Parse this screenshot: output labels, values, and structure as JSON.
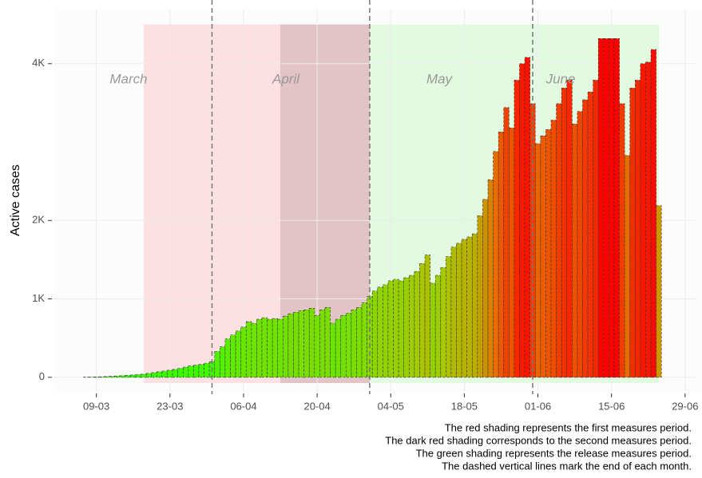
{
  "chart_data": {
    "type": "bar",
    "ylabel": "Active cases",
    "x": [
      "07-03",
      "08-03",
      "09-03",
      "10-03",
      "11-03",
      "12-03",
      "13-03",
      "14-03",
      "15-03",
      "16-03",
      "17-03",
      "18-03",
      "19-03",
      "20-03",
      "21-03",
      "22-03",
      "23-03",
      "24-03",
      "25-03",
      "26-03",
      "27-03",
      "28-03",
      "29-03",
      "30-03",
      "31-03",
      "01-04",
      "02-04",
      "03-04",
      "04-04",
      "05-04",
      "06-04",
      "07-04",
      "08-04",
      "09-04",
      "10-04",
      "11-04",
      "12-04",
      "13-04",
      "14-04",
      "15-04",
      "16-04",
      "17-04",
      "18-04",
      "19-04",
      "20-04",
      "21-04",
      "22-04",
      "23-04",
      "24-04",
      "25-04",
      "26-04",
      "27-04",
      "28-04",
      "29-04",
      "30-04",
      "01-05",
      "02-05",
      "03-05",
      "04-05",
      "05-05",
      "06-05",
      "07-05",
      "08-05",
      "09-05",
      "10-05",
      "11-05",
      "12-05",
      "13-05",
      "14-05",
      "15-05",
      "16-05",
      "17-05",
      "18-05",
      "19-05",
      "20-05",
      "21-05",
      "22-05",
      "23-05",
      "24-05",
      "25-05",
      "26-05",
      "27-05",
      "28-05",
      "29-05",
      "30-05",
      "31-05",
      "01-06",
      "02-06",
      "03-06",
      "04-06",
      "05-06",
      "06-06",
      "07-06",
      "08-06",
      "09-06",
      "10-06",
      "11-06",
      "12-06",
      "13-06",
      "14-06",
      "15-06",
      "16-06",
      "17-06",
      "18-06",
      "19-06",
      "20-06",
      "21-06",
      "22-06",
      "23-06",
      "24-06"
    ],
    "values": [
      2,
      3,
      5,
      7,
      10,
      13,
      16,
      20,
      25,
      30,
      35,
      40,
      50,
      60,
      70,
      80,
      90,
      100,
      115,
      130,
      145,
      155,
      165,
      180,
      200,
      330,
      390,
      490,
      540,
      590,
      640,
      710,
      690,
      740,
      760,
      740,
      750,
      740,
      780,
      810,
      830,
      850,
      860,
      880,
      790,
      860,
      890,
      690,
      740,
      790,
      820,
      860,
      890,
      950,
      1030,
      1100,
      1150,
      1180,
      1230,
      1250,
      1230,
      1270,
      1300,
      1350,
      1450,
      1560,
      1200,
      1300,
      1400,
      1540,
      1660,
      1710,
      1760,
      1790,
      1830,
      2060,
      2270,
      2520,
      2880,
      3130,
      3440,
      3180,
      3790,
      4000,
      4080,
      3490,
      2980,
      3080,
      3160,
      3280,
      3490,
      3690,
      3790,
      3230,
      3390,
      3540,
      3640,
      3790,
      4320,
      4320,
      4320,
      4320,
      3490,
      2830,
      3690,
      3790,
      4000,
      4020,
      4180,
      2190
    ],
    "color_scale": [
      "#33ff00",
      "#a8c800",
      "#e86a00",
      "#ff0000"
    ],
    "xlim": [
      "01-03",
      "01-07"
    ],
    "xticks": [
      "09-03",
      "23-03",
      "06-04",
      "20-04",
      "04-05",
      "18-05",
      "01-06",
      "15-06",
      "29-06"
    ],
    "ylim": [
      -175,
      4690
    ],
    "yticks": [
      0,
      {
        "value": 1000,
        "label": "1K"
      },
      {
        "value": 2000,
        "label": "2K"
      },
      {
        "value": 4000,
        "label": "4K"
      }
    ],
    "grid": true,
    "regions": [
      {
        "start": "18-03",
        "end": "13-04",
        "color": "#fde0e2"
      },
      {
        "start": "13-04",
        "end": "30-04",
        "color": "#e2c3c6"
      },
      {
        "start": "30-04",
        "end": "24-06",
        "color": "#e2fadf"
      }
    ],
    "region_top": 4500,
    "vlines": [
      "31-03",
      "30-04",
      "31-05"
    ],
    "annotations": [
      "March",
      "April",
      "May",
      "June"
    ],
    "notes": [
      "The red shading represents the first measures period.",
      "The dark red shading corresponds to the second measures period.",
      "The green shading represents the release measures period.",
      "The dashed vertical lines mark the end of each month."
    ]
  }
}
